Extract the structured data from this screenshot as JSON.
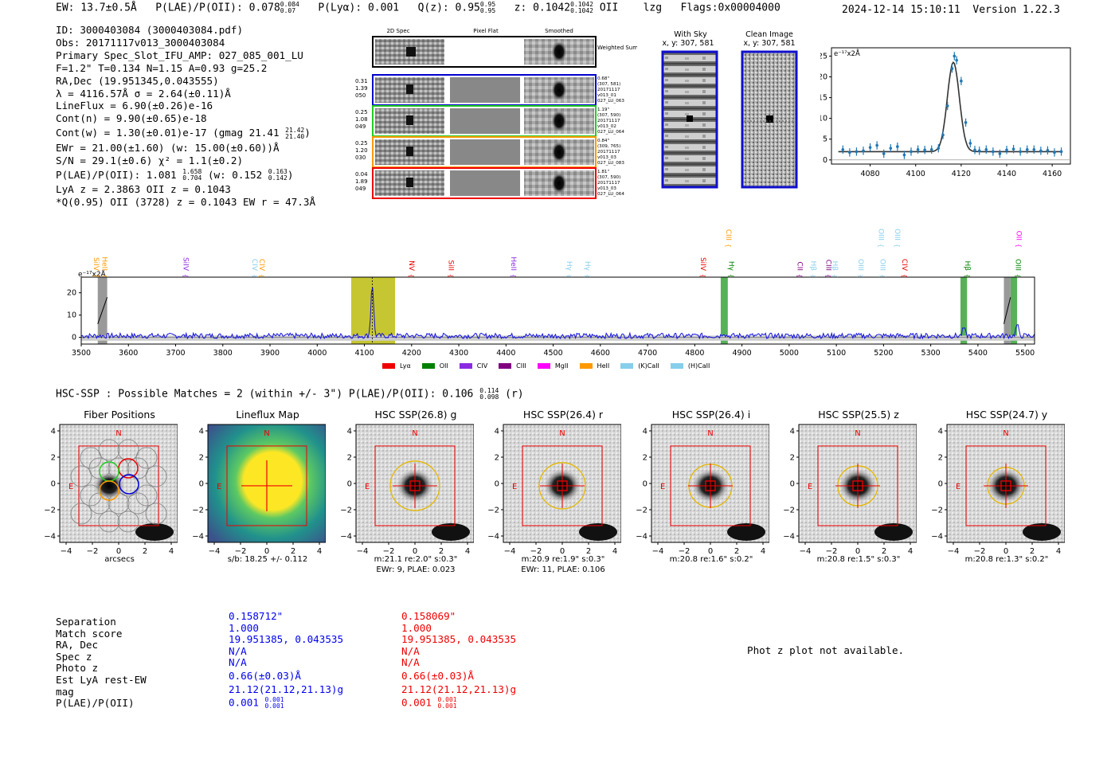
{
  "header": {
    "ew": "EW: 13.7±0.5Å",
    "plae": "P(LAE)/P(OII): 0.078",
    "plae_hi": "0.084",
    "plae_lo": "0.07",
    "plya": "P(Lyα): 0.001",
    "qz": "Q(z): 0.95",
    "qz_hi": "0.95",
    "qz_lo": "0.95",
    "z": "z: 0.1042",
    "z_hi": "0.1042",
    "z_lo": "0.1042",
    "z_tail": "OII    lzg   Flags:0x00004000",
    "datetime": "2024-12-14 15:10:11",
    "version": "Version 1.22.3"
  },
  "info": {
    "line_id": "ID: 3000403084 (3000403084.pdf)",
    "line_obs": "Obs: 20171117v013_3000403084",
    "line_primary": "Primary Spec_Slot_IFU_AMP: 027_085_001_LU",
    "line_f": "F=1.2\"  T=0.134  N=1.15  A=0.93  g=25.2",
    "line_radec": "RA,Dec (19.951345,0.043555)",
    "line_lambda": "λ = 4116.57Å  σ = 2.64(±0.11)Å",
    "line_flux": "LineFlux = 6.90(±0.26)e-16",
    "line_contn": "Cont(n) = 9.90(±0.65)e-18",
    "line_contw": "Cont(w) = 1.30(±0.01)e-17 (gmag 21.41",
    "contw_hi": "21.42",
    "contw_lo": "21.40",
    "line_ewr": "EWr = 21.00(±1.60) (w: 15.00(±0.60))Å",
    "line_sn": "S/N = 29.1(±0.6)  χ² = 1.1(±0.2)",
    "line_plae": "P(LAE)/P(OII): 1.081",
    "plae2_hi": "1.658",
    "plae2_lo": "0.704",
    "plae2_w": "(w: 0.152",
    "plae2w_hi": "0.163",
    "plae2w_lo": "0.142",
    "line_lya": "LyA z = 2.3863  OII z = 0.1043",
    "line_q": "*Q(0.95) OII (3728) z = 0.1043  EW r = 47.3Å"
  },
  "cutouts": {
    "col_2d": "2D Spec",
    "col_flat": "Pixel Flat",
    "col_smooth": "Smoothed",
    "weighted": "Weighted Sum",
    "rows": [
      {
        "l1": "0.31",
        "l2": "1.39",
        "l3": "050",
        "r1": "0.68\"",
        "r2": "(307, 581)",
        "r3": "20171117",
        "r4": "v013_01",
        "r5": "027_LU_063",
        "color": "#0000cc"
      },
      {
        "l1": "0.25",
        "l2": "1.08",
        "l3": "049",
        "r1": "1.19\"",
        "r2": "(307, 590)",
        "r3": "20171117",
        "r4": "v013_02",
        "r5": "027_LU_064",
        "color": "#22cc22"
      },
      {
        "l1": "0.25",
        "l2": "1.20",
        "l3": "030",
        "r1": "0.84\"",
        "r2": "(309, 765)",
        "r3": "20171117",
        "r4": "v013_03",
        "r5": "027_LU_083",
        "color": "#ff9900"
      },
      {
        "l1": "0.04",
        "l2": "1.89",
        "l3": "049",
        "r1": "1.81\"",
        "r2": "(307, 590)",
        "r3": "20171117",
        "r4": "v013_03",
        "r5": "027_LU_064",
        "color": "#ee0000"
      }
    ]
  },
  "sky": {
    "with_sky": "With Sky",
    "with_sky_xy": "x, y: 307, 581",
    "clean": "Clean Image",
    "clean_xy": "x, y: 307, 581"
  },
  "zoom_chart": {
    "ylabel": "e⁻¹⁷x2Å",
    "xticks": [
      "4080",
      "4100",
      "4120",
      "4140",
      "4160"
    ],
    "yticks": [
      "0",
      "5",
      "10",
      "15",
      "20",
      "25"
    ]
  },
  "spectrum": {
    "ylabel": "e⁻¹⁷x2Å",
    "xticks": [
      "3500",
      "3600",
      "3700",
      "3800",
      "3900",
      "4000",
      "4100",
      "4200",
      "4300",
      "4400",
      "4500",
      "4600",
      "4700",
      "4800",
      "4900",
      "5000",
      "5100",
      "5200",
      "5300",
      "5400",
      "5500"
    ],
    "yticks": [
      "0",
      "10",
      "20"
    ],
    "lines": [
      {
        "label": "SiIV",
        "color": "#ff9900",
        "row": 1
      },
      {
        "label": "HeII",
        "color": "#ff9900",
        "row": 1
      },
      {
        "label": "SiIV",
        "color": "#8a2be2",
        "row": 1
      },
      {
        "label": "CIV",
        "color": "#87ceeb",
        "row": 1
      },
      {
        "label": "CIV",
        "color": "#ff9900",
        "row": 1
      },
      {
        "label": "NV",
        "color": "#ee0000",
        "row": 1
      },
      {
        "label": "SiII",
        "color": "#ee0000",
        "row": 1
      },
      {
        "label": "HeII",
        "color": "#8a2be2",
        "row": 1
      },
      {
        "label": "Hγ",
        "color": "#87ceeb",
        "row": 1
      },
      {
        "label": "Hγ",
        "color": "#87ceeb",
        "row": 1
      },
      {
        "label": "SiIV",
        "color": "#ee0000",
        "row": 1
      },
      {
        "label": "CIII",
        "color": "#ff9900",
        "row": 0
      },
      {
        "label": "Hγ",
        "color": "#008000",
        "row": 1
      },
      {
        "label": "CII",
        "color": "#800080",
        "row": 1
      },
      {
        "label": "Hβ",
        "color": "#87ceeb",
        "row": 1
      },
      {
        "label": "CIII",
        "color": "#800080",
        "row": 1
      },
      {
        "label": "Hβ",
        "color": "#87ceeb",
        "row": 1
      },
      {
        "label": "OIII",
        "color": "#87ceeb",
        "row": 1
      },
      {
        "label": "OIII",
        "color": "#87ceeb",
        "row": 1
      },
      {
        "label": "OIII",
        "color": "#87ceeb",
        "row": 0
      },
      {
        "label": "OIII",
        "color": "#87ceeb",
        "row": 0
      },
      {
        "label": "CIV",
        "color": "#ee0000",
        "row": 1
      },
      {
        "label": "Hβ",
        "color": "#008000",
        "row": 1
      },
      {
        "label": "OIII",
        "color": "#008000",
        "row": 1
      },
      {
        "label": "OII",
        "color": "#ff00ff",
        "row": 0
      }
    ],
    "legend": [
      {
        "label": "Lyα",
        "color": "#ee0000"
      },
      {
        "label": "OII",
        "color": "#008000"
      },
      {
        "label": "CIV",
        "color": "#8a2be2"
      },
      {
        "label": "CIII",
        "color": "#800080"
      },
      {
        "label": "MgII",
        "color": "#ff00ff"
      },
      {
        "label": "HeII",
        "color": "#ff9900"
      },
      {
        "label": "(K)CaII",
        "color": "#87ceeb"
      },
      {
        "label": "(H)CaII",
        "color": "#87ceeb"
      }
    ]
  },
  "chart_data": [
    {
      "type": "scatter",
      "title": "",
      "xlabel": "",
      "ylabel": "e⁻¹⁷x2Å",
      "xlim": [
        4063,
        4168
      ],
      "ylim": [
        -1,
        27
      ],
      "x": [
        4068,
        4071,
        4074,
        4077,
        4080,
        4083,
        4086,
        4089,
        4092,
        4095,
        4098,
        4101,
        4104,
        4107,
        4110,
        4112,
        4114,
        4116,
        4117,
        4118,
        4120,
        4122,
        4124,
        4126,
        4128,
        4131,
        4134,
        4137,
        4140,
        4143,
        4146,
        4149,
        4152,
        4155,
        4158,
        4161,
        4164
      ],
      "y": [
        2.5,
        1.8,
        2.0,
        2.2,
        3.0,
        3.5,
        1.5,
        2.8,
        3.2,
        1.2,
        2.0,
        2.5,
        2.4,
        2.5,
        2.8,
        6,
        13,
        22,
        25,
        24,
        19,
        9,
        4,
        2.4,
        2.2,
        2.5,
        2.0,
        1.5,
        2.4,
        2.6,
        2.0,
        2.5,
        2.5,
        2.2,
        2.3,
        1.8,
        2.0
      ],
      "fit_center": 4116.57,
      "fit_sigma": 2.64,
      "fit_amp": 21.5,
      "fit_base": 2.0
    },
    {
      "type": "line",
      "title": "",
      "xlabel": "",
      "ylabel": "e⁻¹⁷x2Å",
      "xlim": [
        3500,
        5520
      ],
      "ylim": [
        -3,
        27
      ],
      "peaks": [
        {
          "x": 4116.6,
          "y": 23.5
        },
        {
          "x": 4861,
          "y": 1.5
        },
        {
          "x": 5370,
          "y": 3.5
        },
        {
          "x": 5483,
          "y": 5
        }
      ],
      "base": 0.7,
      "noise_amp": 2.4,
      "highlight_bands": [
        {
          "x0": 4072,
          "x1": 4165,
          "color": "#b8b800"
        },
        {
          "x0": 4855,
          "x1": 4870,
          "color": "#2e9e2e"
        },
        {
          "x0": 5363,
          "x1": 5377,
          "color": "#2e9e2e"
        },
        {
          "x0": 5469,
          "x1": 5483,
          "color": "#2e9e2e"
        }
      ],
      "masked_bands": [
        {
          "x0": 3535,
          "x1": 3555
        },
        {
          "x0": 5455,
          "x1": 5469
        }
      ],
      "line_positions": [
        3522,
        3540,
        3712,
        3858,
        3873,
        4190,
        4274,
        4406,
        4524,
        4563,
        4808,
        4862,
        4868,
        5013,
        5042,
        5074,
        5087,
        5142,
        5188,
        5220,
        5185,
        5235,
        5368,
        5475,
        5477
      ]
    }
  ],
  "hsc": {
    "heading": "HSC-SSP : Possible Matches = 2 (within +/- 3\")  P(LAE)/P(OII): 0.106",
    "heading_hi": "0.114",
    "heading_lo": "0.098",
    "heading_tail": "(r)",
    "n_label": "N",
    "e_label": "E",
    "ticks": [
      "−4",
      "−2",
      "0",
      "2",
      "4"
    ],
    "panels": [
      {
        "title": "Fiber Positions",
        "cap1": "arcsecs",
        "cap2": ""
      },
      {
        "title": "Lineflux Map",
        "cap1": "s/b: 18.25 +/- 0.112",
        "cap2": ""
      },
      {
        "title": "HSC SSP(26.8) g",
        "cap1": "m:21.1  re:2.0\"  s:0.3\"",
        "cap2": "EWr: 9, PLAE: 0.023"
      },
      {
        "title": "HSC SSP(26.4) r",
        "cap1": "m:20.9  re:1.9\"  s:0.3\"",
        "cap2": "EWr: 11, PLAE: 0.106"
      },
      {
        "title": "HSC SSP(26.4) i",
        "cap1": "m:20.8  re:1.6\"  s:0.2\"",
        "cap2": ""
      },
      {
        "title": "HSC SSP(25.5) z",
        "cap1": "m:20.8  re:1.5\"  s:0.3\"",
        "cap2": ""
      },
      {
        "title": "HSC SSP(24.7) y",
        "cap1": "m:20.8  re:1.3\"  s:0.2\"",
        "cap2": ""
      }
    ]
  },
  "match_table": {
    "labels": [
      "Separation",
      "Match score",
      "RA, Dec",
      "Spec z",
      "Photo z",
      "Est LyA rest-EW",
      "mag",
      "P(LAE)/P(OII)"
    ],
    "col1": [
      "0.158712\"",
      "1.000",
      "19.951385, 0.043535",
      "N/A",
      "N/A",
      "0.66(±0.03)Å",
      "21.12(21.12,21.13)g",
      "0.001"
    ],
    "col1_hi": "0.001",
    "col1_lo": "0.001",
    "col2": [
      "0.158069\"",
      "1.000",
      "19.951385, 0.043535",
      "N/A",
      "N/A",
      "0.66(±0.03)Å",
      "21.12(21.12,21.13)g",
      "0.001"
    ],
    "col2_hi": "0.001",
    "col2_lo": "0.001",
    "photz_note": "Phot z plot not available."
  }
}
